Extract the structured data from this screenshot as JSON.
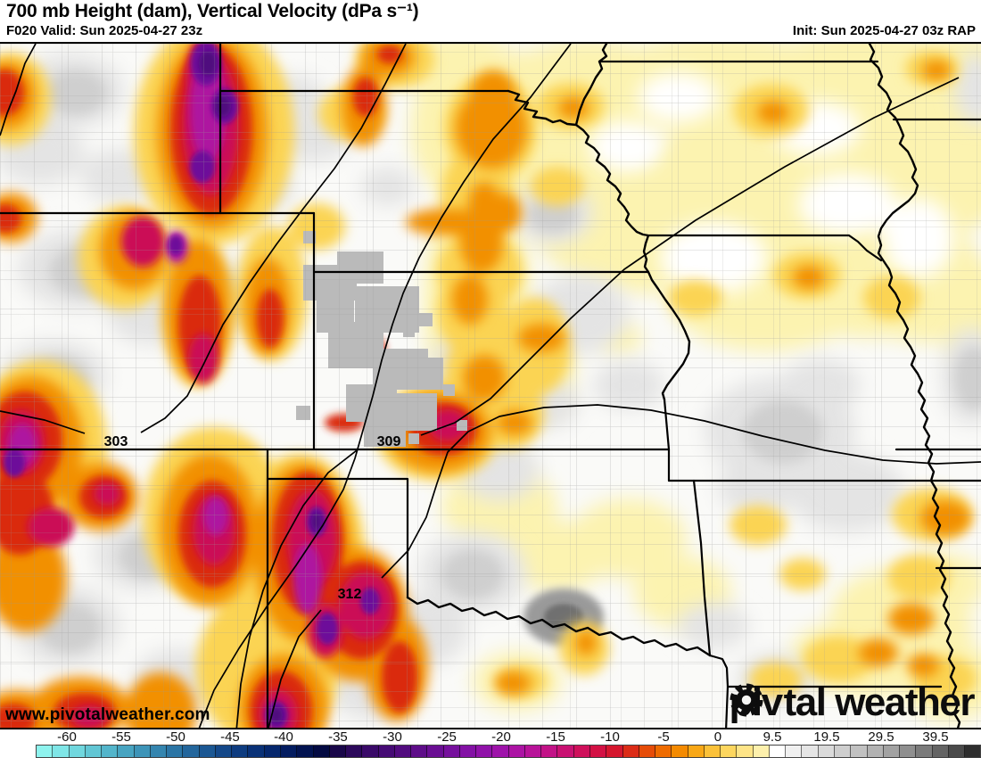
{
  "header": {
    "title": "700 mb Height (dam), Vertical Velocity (dPa s⁻¹)",
    "forecast": "F020 Valid: Sun 2025-04-27 23z",
    "init": "Init: Sun 2025-04-27 03z RAP"
  },
  "map": {
    "contour_labels": [
      {
        "value": "303"
      },
      {
        "value": "309"
      },
      {
        "value": "312"
      }
    ],
    "watermark": "www.pivotalweather.com",
    "logo": {
      "part1": "piv",
      "part2": "tal weather"
    }
  },
  "colorbar": {
    "ticks": [
      {
        "label": "-60",
        "x_pct": 6.82
      },
      {
        "label": "-55",
        "x_pct": 12.36
      },
      {
        "label": "-50",
        "x_pct": 17.91
      },
      {
        "label": "-45",
        "x_pct": 23.45
      },
      {
        "label": "-40",
        "x_pct": 28.91
      },
      {
        "label": "-35",
        "x_pct": 34.45
      },
      {
        "label": "-30",
        "x_pct": 40.0
      },
      {
        "label": "-25",
        "x_pct": 45.55
      },
      {
        "label": "-20",
        "x_pct": 51.09
      },
      {
        "label": "-15",
        "x_pct": 56.64
      },
      {
        "label": "-10",
        "x_pct": 62.18
      },
      {
        "label": "-5",
        "x_pct": 67.64
      },
      {
        "label": "0",
        "x_pct": 73.18
      },
      {
        "label": "9.5",
        "x_pct": 78.73
      },
      {
        "label": "19.5",
        "x_pct": 84.27
      },
      {
        "label": "29.5",
        "x_pct": 89.82
      },
      {
        "label": "39.5",
        "x_pct": 95.36
      }
    ],
    "colors": [
      "#8ef3ee",
      "#7fe6e7",
      "#70d7de",
      "#61c6d4",
      "#53b5cb",
      "#47a4c1",
      "#3d94b8",
      "#3485af",
      "#2b75a5",
      "#23669c",
      "#1b5793",
      "#144889",
      "#0e3c80",
      "#093177",
      "#05276d",
      "#031c60",
      "#021351",
      "#030a42",
      "#190749",
      "#2c095b",
      "#3a0a69",
      "#460b75",
      "#520c7f",
      "#5e0d89",
      "#6a0e93",
      "#76109d",
      "#8311a5",
      "#9012a9",
      "#9e13aa",
      "#ac13a4",
      "#b81399",
      "#c21287",
      "#c91172",
      "#cf105b",
      "#d31144",
      "#d5162e",
      "#dc2c17",
      "#e64c08",
      "#ee6b00",
      "#f48a00",
      "#f8a716",
      "#fbc139",
      "#fdd65e",
      "#fee487",
      "#fdf0ac",
      "#ffffff",
      "#f0f0f0",
      "#e5e5e5",
      "#dadada",
      "#cecece",
      "#c1c1c1",
      "#b2b2b2",
      "#a2a2a2",
      "#8f8f8f",
      "#7b7b7b",
      "#646464",
      "#4a4a4a",
      "#2e2e2e"
    ]
  }
}
